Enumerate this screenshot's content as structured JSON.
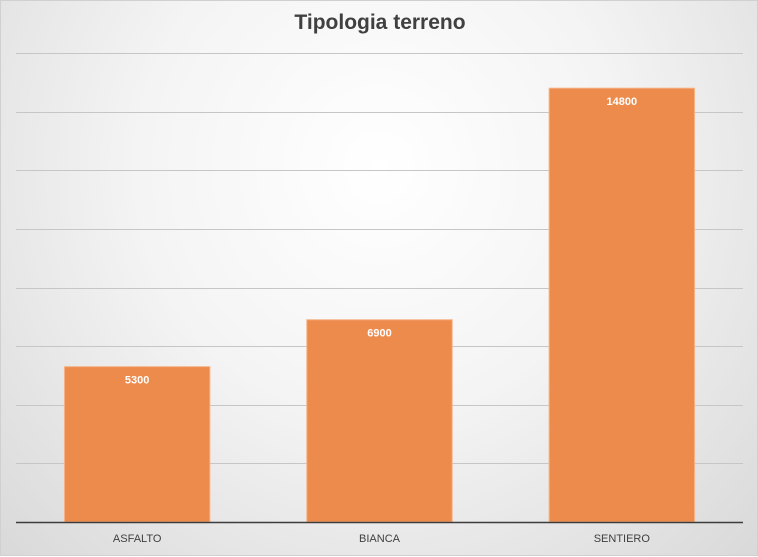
{
  "chart_data": {
    "type": "bar",
    "title": "Tipologia terreno",
    "categories": [
      "ASFALTO",
      "BIANCA",
      "SENTIERO"
    ],
    "values": [
      5300,
      6900,
      14800
    ],
    "ylim": [
      0,
      16000
    ],
    "y_gridline_step": 2000,
    "y_tick_labels_shown": false,
    "grid": true,
    "legend": "none",
    "colors": {
      "bar": "#ED8B4D",
      "bar_border": "#F6B386",
      "gridline": "#c6c6c6",
      "axis": "#3c3c3c",
      "label": "#404040",
      "data_label": "#ffffff"
    }
  }
}
